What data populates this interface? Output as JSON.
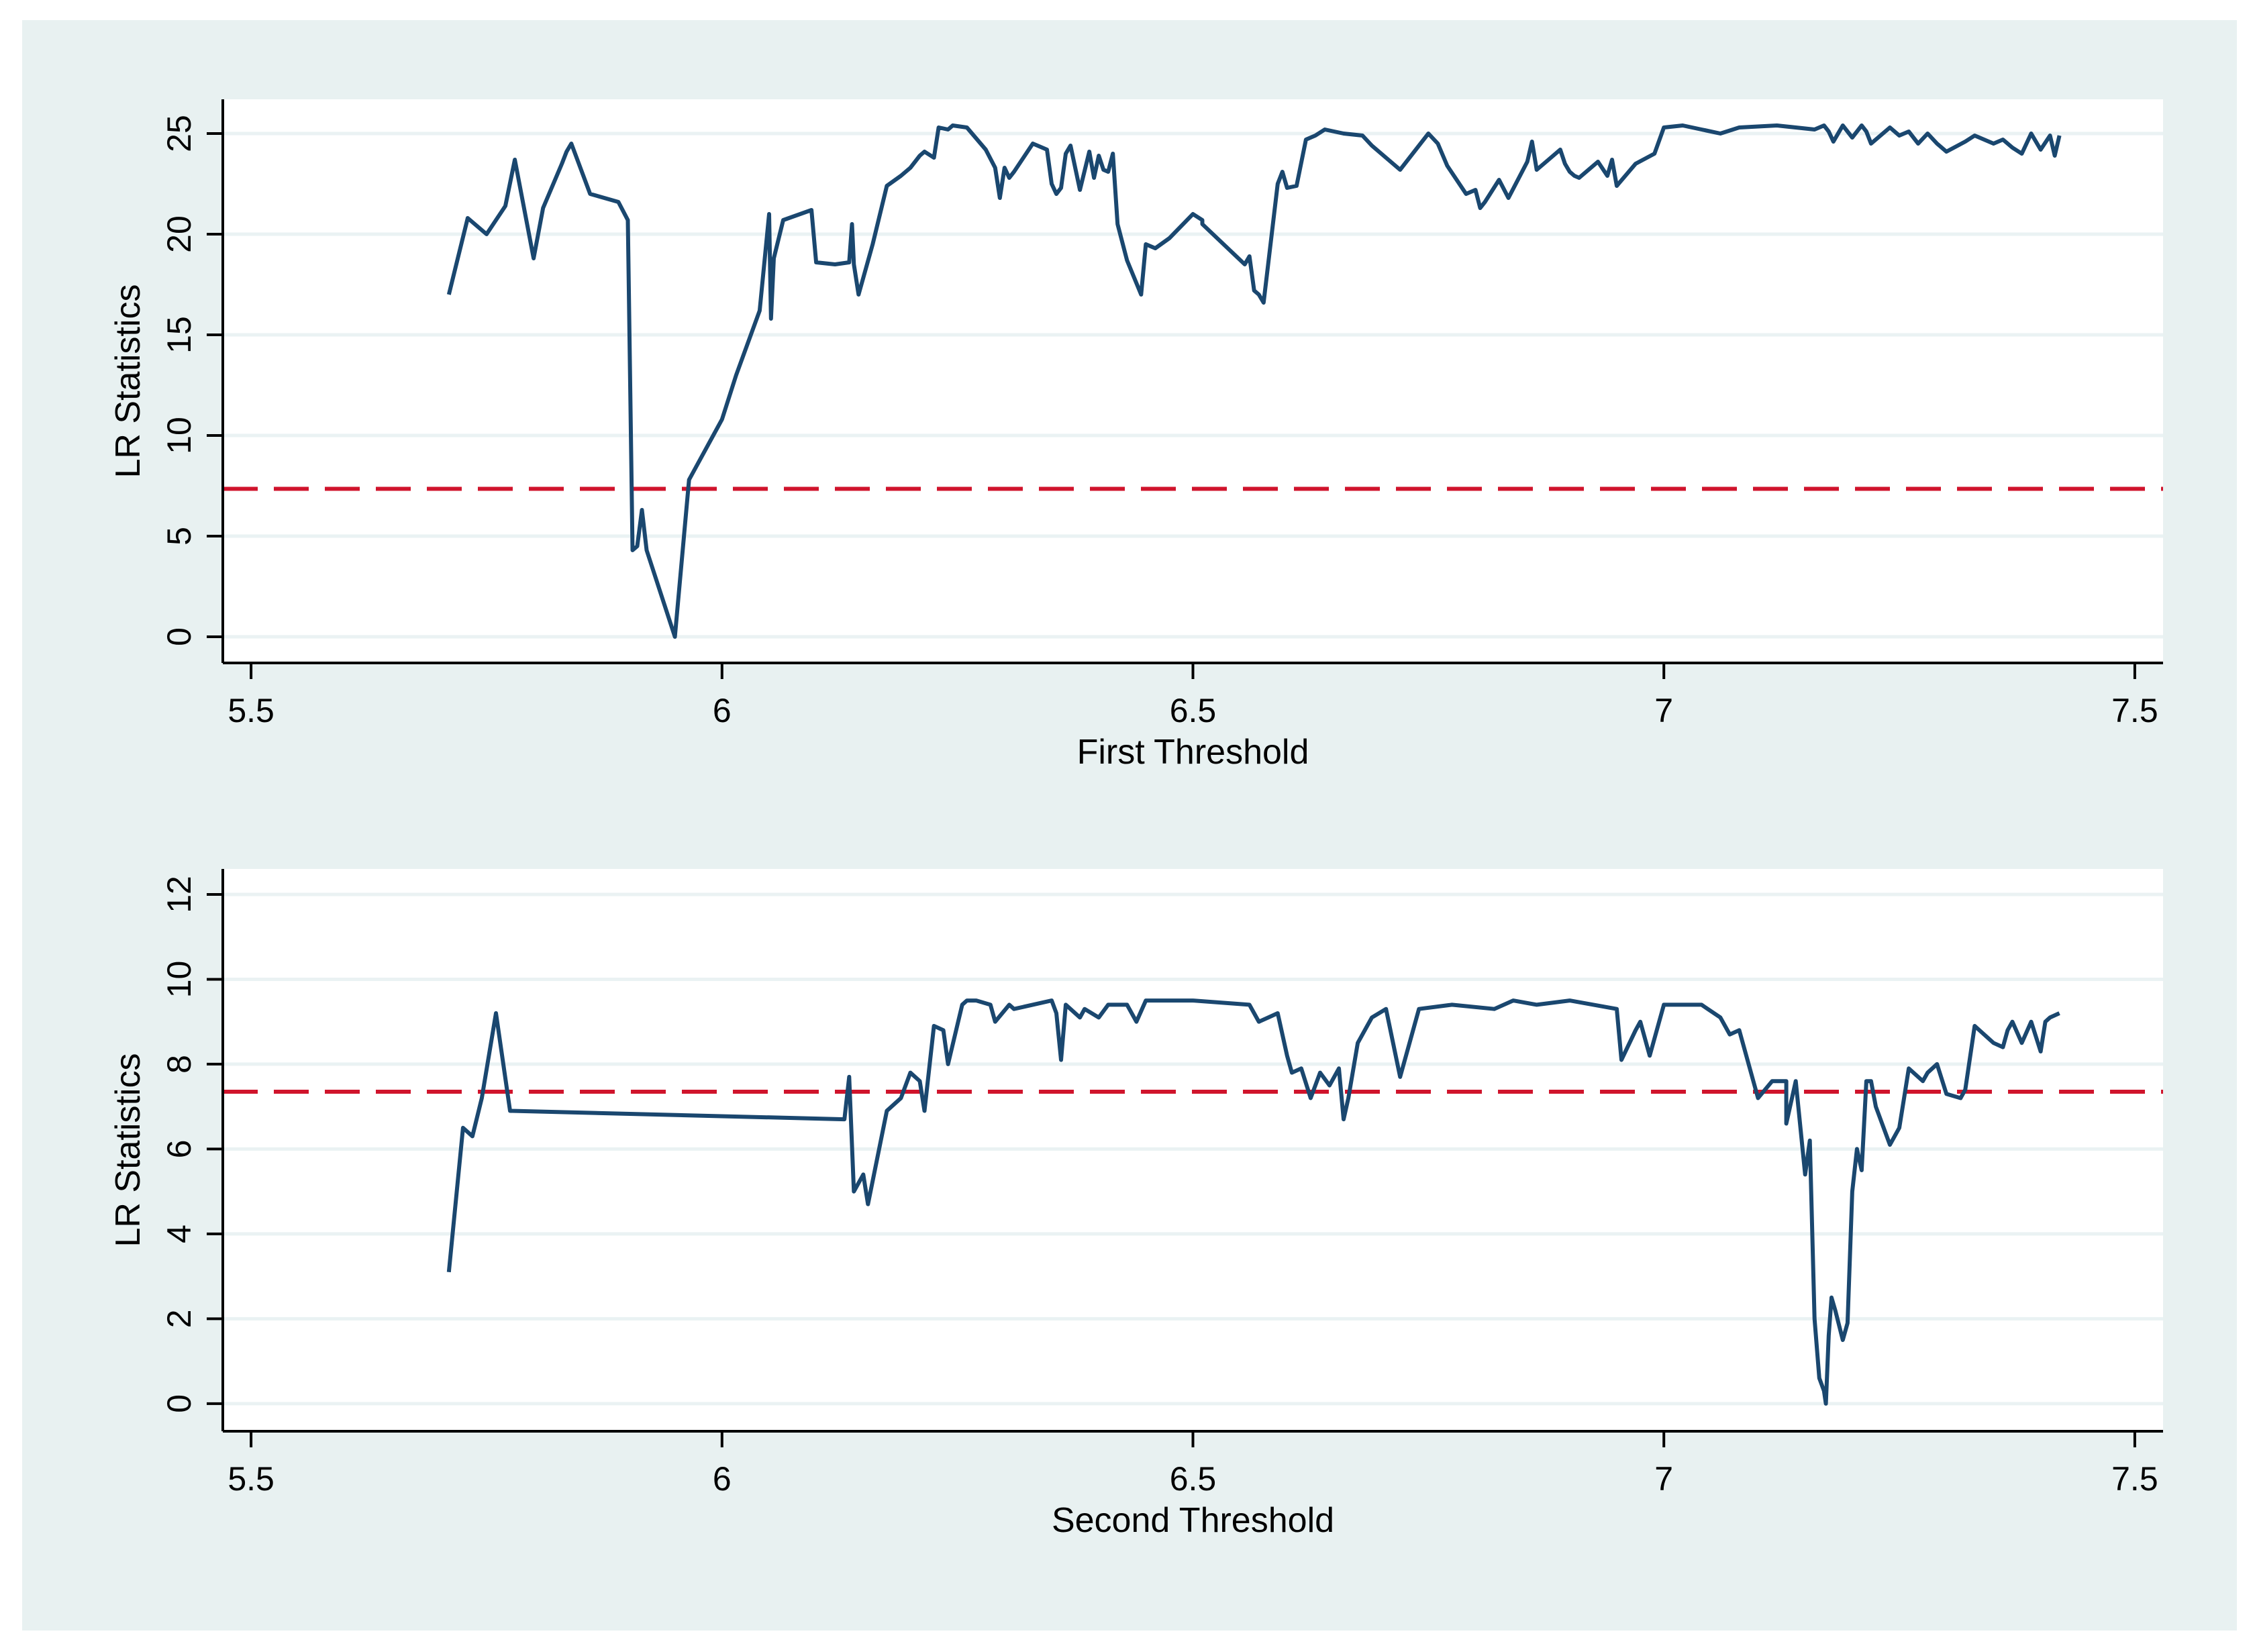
{
  "chart_data": [
    {
      "type": "line",
      "xlabel": "First Threshold",
      "ylabel": "LR Statistics",
      "xlim": [
        5.47,
        7.53
      ],
      "ylim": [
        -1.3,
        26.7
      ],
      "xticks": [
        5.5,
        6,
        6.5,
        7,
        7.5
      ],
      "xtick_labels": [
        "5.5",
        "6",
        "6.5",
        "7",
        "7.5"
      ],
      "yticks": [
        0,
        5,
        10,
        15,
        20,
        25
      ],
      "ytick_labels": [
        "0",
        "5",
        "10",
        "15",
        "20",
        "25"
      ],
      "grid": true,
      "critical_value": 7.35,
      "colors": {
        "line": "#1a476f",
        "critical": "#d0142c",
        "grid": "#eaf2f3",
        "plot_bg": "#ffffff",
        "outer_bg": "#e8f1f1"
      },
      "series": [
        {
          "x": [
            5.71,
            5.73,
            5.75,
            5.77,
            5.78,
            5.8,
            5.81,
            5.83,
            5.835,
            5.84,
            5.86,
            5.89,
            5.9,
            5.905,
            5.91,
            5.915,
            5.92,
            5.95,
            5.965,
            6.0,
            6.015,
            6.04,
            6.05,
            6.052,
            6.055,
            6.065,
            6.095,
            6.1,
            6.12,
            6.135,
            6.138,
            6.14,
            6.145,
            6.16,
            6.175,
            6.19,
            6.2,
            6.21,
            6.215,
            6.225,
            6.23,
            6.24,
            6.245,
            6.26,
            6.28,
            6.29,
            6.295,
            6.3,
            6.305,
            6.31,
            6.33,
            6.34,
            6.345,
            6.35,
            6.355,
            6.36,
            6.365,
            6.37,
            6.38,
            6.39,
            6.395,
            6.4,
            6.405,
            6.41,
            6.415,
            6.42,
            6.43,
            6.445,
            6.45,
            6.46,
            6.475,
            6.5,
            6.51,
            6.51,
            6.555,
            6.56,
            6.565,
            6.57,
            6.575,
            6.59,
            6.595,
            6.6,
            6.61,
            6.62,
            6.63,
            6.64,
            6.66,
            6.68,
            6.69,
            6.72,
            6.75,
            6.76,
            6.77,
            6.79,
            6.8,
            6.805,
            6.81,
            6.825,
            6.835,
            6.855,
            6.86,
            6.865,
            6.875,
            6.89,
            6.895,
            6.9,
            6.905,
            6.91,
            6.93,
            6.94,
            6.945,
            6.95,
            6.97,
            6.99,
            7.0,
            7.02,
            7.04,
            7.06,
            7.08,
            7.12,
            7.16,
            7.17,
            7.175,
            7.18,
            7.19,
            7.2,
            7.21,
            7.215,
            7.22,
            7.24,
            7.25,
            7.26,
            7.27,
            7.28,
            7.29,
            7.3,
            7.32,
            7.33,
            7.35,
            7.36,
            7.37,
            7.38,
            7.39,
            7.4,
            7.41,
            7.415,
            7.42
          ],
          "y": [
            17.0,
            20.8,
            20.0,
            21.4,
            23.7,
            18.8,
            21.3,
            23.5,
            24.1,
            24.5,
            22.0,
            21.6,
            20.7,
            4.3,
            4.5,
            6.3,
            4.3,
            0.0,
            7.8,
            10.8,
            13.0,
            16.2,
            21.0,
            15.8,
            18.8,
            20.7,
            21.2,
            18.6,
            18.5,
            18.6,
            20.5,
            18.5,
            17.0,
            19.5,
            22.4,
            22.9,
            23.3,
            23.9,
            24.1,
            23.8,
            25.3,
            25.2,
            25.4,
            25.3,
            24.2,
            23.3,
            21.8,
            23.3,
            22.8,
            23.1,
            24.5,
            24.3,
            24.2,
            22.5,
            22.0,
            22.3,
            24.0,
            24.4,
            22.2,
            24.1,
            22.8,
            23.9,
            23.2,
            23.1,
            24.0,
            20.5,
            18.7,
            17.0,
            19.5,
            19.3,
            19.8,
            21.0,
            20.7,
            20.5,
            18.5,
            18.9,
            17.2,
            17.0,
            16.6,
            22.5,
            23.1,
            22.3,
            22.4,
            24.7,
            24.9,
            25.2,
            25.0,
            24.9,
            24.4,
            23.2,
            25.0,
            24.5,
            23.4,
            22.0,
            22.2,
            21.3,
            21.6,
            22.7,
            21.8,
            23.6,
            24.6,
            23.2,
            23.6,
            24.2,
            23.5,
            23.1,
            22.9,
            22.8,
            23.6,
            22.9,
            23.7,
            22.4,
            23.5,
            24.0,
            25.3,
            25.4,
            25.2,
            25.0,
            25.3,
            25.4,
            25.2,
            25.4,
            25.1,
            24.6,
            25.4,
            24.8,
            25.4,
            25.1,
            24.5,
            25.3,
            24.9,
            25.1,
            24.5,
            25.0,
            24.5,
            24.1,
            24.6,
            24.9,
            24.5,
            24.7,
            24.3,
            24.0,
            25.0,
            24.2,
            24.9,
            23.9,
            24.9
          ]
        }
      ]
    },
    {
      "type": "line",
      "xlabel": "Second Threshold",
      "ylabel": "LR Statistics",
      "xlim": [
        5.47,
        7.53
      ],
      "ylim": [
        -0.65,
        12.6
      ],
      "xticks": [
        5.5,
        6,
        6.5,
        7,
        7.5
      ],
      "xtick_labels": [
        "5.5",
        "6",
        "6.5",
        "7",
        "7.5"
      ],
      "yticks": [
        0,
        2,
        4,
        6,
        8,
        10,
        12
      ],
      "ytick_labels": [
        "0",
        "2",
        "4",
        "6",
        "8",
        "10",
        "12"
      ],
      "grid": true,
      "critical_value": 7.35,
      "colors": {
        "line": "#1a476f",
        "critical": "#d0142c",
        "grid": "#eaf2f3",
        "plot_bg": "#ffffff",
        "outer_bg": "#e8f1f1"
      },
      "series": [
        {
          "x": [
            5.71,
            5.725,
            5.735,
            5.745,
            5.76,
            5.775,
            6.13,
            6.135,
            6.14,
            6.15,
            6.155,
            6.175,
            6.19,
            6.2,
            6.21,
            6.215,
            6.225,
            6.235,
            6.24,
            6.255,
            6.26,
            6.27,
            6.285,
            6.29,
            6.305,
            6.31,
            6.35,
            6.355,
            6.36,
            6.365,
            6.38,
            6.385,
            6.4,
            6.41,
            6.43,
            6.44,
            6.45,
            6.46,
            6.47,
            6.5,
            6.56,
            6.57,
            6.58,
            6.59,
            6.6,
            6.605,
            6.615,
            6.625,
            6.635,
            6.645,
            6.655,
            6.66,
            6.665,
            6.675,
            6.69,
            6.705,
            6.72,
            6.74,
            6.775,
            6.82,
            6.84,
            6.865,
            6.9,
            6.95,
            6.955,
            6.97,
            6.975,
            6.985,
            7.0,
            7.04,
            7.06,
            7.07,
            7.08,
            7.1,
            7.115,
            7.13,
            7.13,
            7.14,
            7.15,
            7.155,
            7.16,
            7.165,
            7.17,
            7.172,
            7.175,
            7.178,
            7.182,
            7.19,
            7.195,
            7.2,
            7.205,
            7.21,
            7.215,
            7.22,
            7.225,
            7.24,
            7.25,
            7.255,
            7.26,
            7.275,
            7.28,
            7.29,
            7.3,
            7.315,
            7.32,
            7.33,
            7.335,
            7.345,
            7.35,
            7.36,
            7.365,
            7.37,
            7.38,
            7.39,
            7.4,
            7.405,
            7.41,
            7.42
          ],
          "y": [
            3.1,
            6.5,
            6.3,
            7.2,
            9.2,
            6.9,
            6.7,
            7.7,
            5.0,
            5.4,
            4.7,
            6.9,
            7.2,
            7.8,
            7.6,
            6.9,
            8.9,
            8.8,
            8.0,
            9.4,
            9.5,
            9.5,
            9.4,
            9.0,
            9.4,
            9.3,
            9.5,
            9.2,
            8.1,
            9.4,
            9.1,
            9.3,
            9.1,
            9.4,
            9.4,
            9.0,
            9.5,
            9.5,
            9.5,
            9.5,
            9.4,
            9.0,
            9.1,
            9.2,
            8.2,
            7.8,
            7.9,
            7.2,
            7.8,
            7.5,
            7.9,
            6.7,
            7.2,
            8.5,
            9.1,
            9.3,
            7.7,
            9.3,
            9.4,
            9.3,
            9.5,
            9.4,
            9.5,
            9.3,
            8.1,
            8.8,
            9.0,
            8.2,
            9.4,
            9.4,
            9.1,
            8.7,
            8.8,
            7.2,
            7.6,
            7.6,
            6.6,
            7.6,
            5.4,
            6.2,
            2.0,
            0.6,
            0.3,
            0.0,
            1.6,
            2.5,
            2.2,
            1.5,
            1.9,
            5.0,
            6.0,
            5.5,
            7.6,
            7.6,
            7.0,
            6.1,
            6.5,
            7.2,
            7.9,
            7.6,
            7.8,
            8.0,
            7.3,
            7.2,
            7.4,
            8.9,
            8.8,
            8.6,
            8.5,
            8.4,
            8.8,
            9.0,
            8.5,
            9.0,
            8.3,
            9.0,
            9.1,
            9.2
          ]
        }
      ]
    }
  ]
}
